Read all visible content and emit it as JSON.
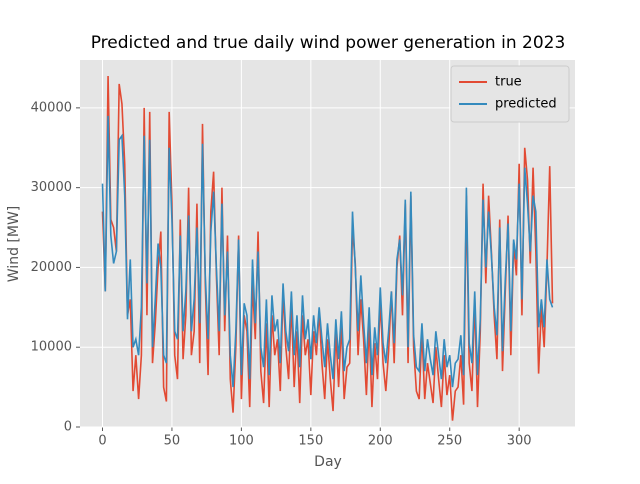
{
  "chart_data": {
    "type": "line",
    "title": "Predicted and true daily wind power generation in 2023",
    "x_label": "Day",
    "y_label": "Wind [MW]",
    "x": [
      0,
      2,
      4,
      6,
      8,
      10,
      12,
      14,
      16,
      18,
      20,
      22,
      24,
      26,
      28,
      30,
      32,
      34,
      36,
      38,
      40,
      42,
      44,
      46,
      48,
      50,
      52,
      54,
      56,
      58,
      60,
      62,
      64,
      66,
      68,
      70,
      72,
      74,
      76,
      78,
      80,
      82,
      84,
      86,
      88,
      90,
      92,
      94,
      96,
      98,
      100,
      102,
      104,
      106,
      108,
      110,
      112,
      114,
      116,
      118,
      120,
      122,
      124,
      126,
      128,
      130,
      132,
      134,
      136,
      138,
      140,
      142,
      144,
      146,
      148,
      150,
      152,
      154,
      156,
      158,
      160,
      162,
      164,
      166,
      168,
      170,
      172,
      174,
      176,
      178,
      180,
      182,
      184,
      186,
      188,
      190,
      192,
      194,
      196,
      198,
      200,
      202,
      204,
      206,
      208,
      210,
      212,
      214,
      216,
      218,
      220,
      222,
      224,
      226,
      228,
      230,
      232,
      234,
      236,
      238,
      240,
      242,
      244,
      246,
      248,
      250,
      252,
      254,
      256,
      258,
      260,
      262,
      264,
      266,
      268,
      270,
      272,
      274,
      276,
      278,
      280,
      282,
      284,
      286,
      288,
      290,
      292,
      294,
      296,
      298,
      300,
      302,
      304,
      306,
      308,
      310,
      312,
      314,
      316,
      318,
      320,
      322,
      324
    ],
    "series": [
      {
        "name": "true",
        "color": "#e24a33",
        "values": [
          27000,
          17000,
          44000,
          26000,
          25000,
          22000,
          43000,
          40500,
          33000,
          14000,
          16000,
          4500,
          9000,
          3500,
          9000,
          40000,
          14000,
          39500,
          8000,
          13000,
          20000,
          24500,
          5000,
          3200,
          39500,
          28000,
          9000,
          6000,
          26000,
          8500,
          14000,
          30000,
          9000,
          12000,
          28000,
          8000,
          38000,
          18000,
          6500,
          27000,
          32000,
          19000,
          9000,
          30000,
          12000,
          24000,
          6000,
          1800,
          10000,
          24000,
          3500,
          14000,
          12000,
          2500,
          18000,
          11000,
          24500,
          7000,
          3000,
          13000,
          2500,
          14000,
          9000,
          11000,
          4500,
          17000,
          10000,
          6000,
          15500,
          5000,
          12000,
          3000,
          14000,
          9000,
          11000,
          4000,
          12000,
          9000,
          14500,
          8000,
          3500,
          11000,
          6000,
          2000,
          12000,
          5000,
          13000,
          3500,
          7500,
          8000,
          25000,
          20500,
          9000,
          16000,
          11000,
          4000,
          13000,
          2500,
          10500,
          6000,
          16000,
          8000,
          4500,
          9500,
          17000,
          8000,
          20000,
          24000,
          14000,
          28000,
          8000,
          29000,
          10000,
          4500,
          3500,
          12000,
          3500,
          8000,
          5500,
          3000,
          10000,
          6000,
          2500,
          9000,
          4000,
          6500,
          800,
          4500,
          5000,
          9000,
          2800,
          29000,
          8000,
          4500,
          16000,
          2500,
          12000,
          30500,
          18000,
          29000,
          22000,
          14000,
          8500,
          26000,
          7000,
          17000,
          26500,
          9000,
          23000,
          19000,
          33000,
          14000,
          35000,
          31000,
          20500,
          32500,
          22000,
          6700,
          15000,
          10000,
          20000,
          32700,
          15500
        ]
      },
      {
        "name": "predicted",
        "color": "#348abd",
        "values": [
          30500,
          17000,
          39000,
          24000,
          20500,
          22000,
          36000,
          36500,
          29000,
          13500,
          21000,
          10000,
          11000,
          9000,
          15000,
          36500,
          18000,
          36000,
          10000,
          16000,
          23000,
          20000,
          9000,
          8000,
          35000,
          26000,
          12000,
          11000,
          24000,
          12000,
          17000,
          26500,
          12000,
          16000,
          25000,
          13000,
          35500,
          19000,
          11000,
          24500,
          29500,
          20000,
          12000,
          28000,
          14000,
          22000,
          9000,
          5000,
          12000,
          23500,
          6500,
          15500,
          14000,
          6000,
          21000,
          13000,
          22000,
          10000,
          7500,
          16000,
          6500,
          16500,
          12000,
          13500,
          8000,
          18000,
          12000,
          9500,
          17000,
          9000,
          14000,
          7500,
          16500,
          11000,
          13500,
          8500,
          14000,
          10500,
          15000,
          11000,
          7500,
          13000,
          9000,
          6000,
          13500,
          8500,
          14500,
          7000,
          10000,
          11000,
          27000,
          20000,
          12000,
          19000,
          13000,
          8000,
          15000,
          6500,
          12500,
          9000,
          17500,
          10500,
          8000,
          12000,
          17000,
          10500,
          21000,
          23500,
          16500,
          28500,
          10000,
          29500,
          11500,
          7500,
          7000,
          13000,
          7000,
          11000,
          8500,
          6500,
          12000,
          9000,
          6000,
          11000,
          7500,
          9000,
          5000,
          8000,
          8500,
          11500,
          6500,
          30000,
          10500,
          8000,
          17000,
          6500,
          13500,
          28500,
          20000,
          27000,
          21500,
          15000,
          11500,
          25000,
          9500,
          18500,
          25500,
          12000,
          23500,
          21000,
          30500,
          16000,
          32500,
          28000,
          22000,
          29000,
          27000,
          12500,
          16000,
          12500,
          21000,
          16000,
          15000
        ]
      }
    ],
    "xlim": [
      -16.2,
      340.2
    ],
    "ylim": [
      0,
      46000
    ],
    "xticks": [
      0,
      50,
      100,
      150,
      200,
      250,
      300
    ],
    "yticks": [
      0,
      10000,
      20000,
      30000,
      40000
    ],
    "grid": true,
    "legend": "upper right"
  }
}
